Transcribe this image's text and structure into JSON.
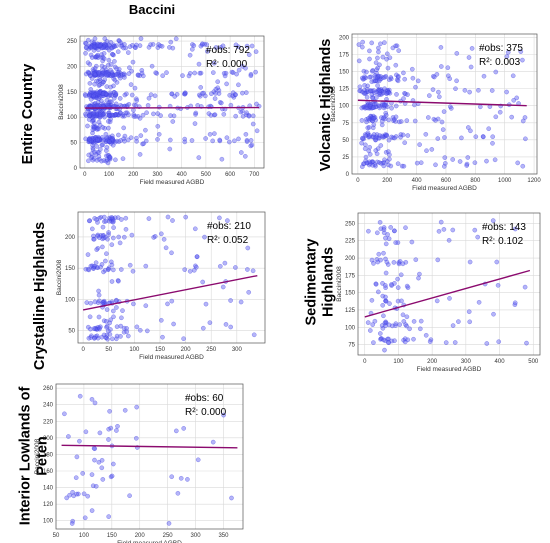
{
  "figure": {
    "title": "Baccini"
  },
  "chart_data": [
    {
      "type": "scatter",
      "region": "Entire Country",
      "xlabel": "Field measured AGBD",
      "ylabel": "Baccini2008",
      "xlim": [
        -20,
        740
      ],
      "ylim": [
        0,
        260
      ],
      "xticks": [
        0,
        100,
        200,
        300,
        400,
        500,
        600,
        700
      ],
      "yticks": [
        0,
        50,
        100,
        150,
        200,
        250
      ],
      "obs_text": "#obs: 792",
      "r2_text": "R²: 0.000",
      "fit": {
        "x": [
          0,
          720
        ],
        "y": [
          118,
          119
        ]
      },
      "points": {
        "count": 792,
        "seed": 11,
        "x_min": 0,
        "x_max": 720,
        "x_mode": 130,
        "y_levels": [
          55,
          105,
          120,
          145,
          185,
          240
        ],
        "y_min": 10,
        "y_max": 255
      }
    },
    {
      "type": "scatter",
      "region": "Volcanic Highlands",
      "xlabel": "Field measured AGBD",
      "ylabel": "Baccini2008",
      "xlim": [
        -40,
        1220
      ],
      "ylim": [
        0,
        205
      ],
      "xticks": [
        0,
        200,
        400,
        600,
        800,
        1000,
        1200
      ],
      "yticks": [
        0,
        25,
        50,
        75,
        100,
        125,
        150,
        175,
        200
      ],
      "obs_text": "#obs: 375",
      "r2_text": "R²: 0.003",
      "fit": {
        "x": [
          0,
          1150
        ],
        "y": [
          108,
          100
        ]
      },
      "points": {
        "count": 375,
        "seed": 23,
        "x_min": 0,
        "x_max": 1150,
        "x_mode": 250,
        "y_levels": [
          15,
          55,
          80,
          100,
          120,
          140
        ],
        "y_min": 10,
        "y_max": 195
      }
    },
    {
      "type": "scatter",
      "region": "Crystalline Highlands",
      "xlabel": "Field measured AGBD",
      "ylabel": "Baccini2008",
      "xlim": [
        -10,
        355
      ],
      "ylim": [
        30,
        240
      ],
      "xticks": [
        0,
        50,
        100,
        150,
        200,
        250,
        300
      ],
      "yticks": [
        50,
        100,
        150,
        200
      ],
      "obs_text": "#obs: 210",
      "r2_text": "R²: 0.052",
      "fit": {
        "x": [
          0,
          340
        ],
        "y": [
          83,
          138
        ]
      },
      "points": {
        "count": 210,
        "seed": 37,
        "x_min": 5,
        "x_max": 335,
        "x_mode": 80,
        "y_levels": [
          40,
          52,
          95,
          150,
          200,
          228
        ],
        "y_min": 35,
        "y_max": 232
      }
    },
    {
      "type": "scatter",
      "region": "Sedimentary Highlands",
      "xlabel": "Field measured AGBD",
      "ylabel": "Baccini2008",
      "xlim": [
        -20,
        520
      ],
      "ylim": [
        60,
        265
      ],
      "xticks": [
        0,
        100,
        200,
        300,
        400,
        500
      ],
      "yticks": [
        75,
        100,
        125,
        150,
        175,
        200,
        225,
        250
      ],
      "obs_text": "#obs: 143",
      "r2_text": "R²: 0.102",
      "fit": {
        "x": [
          0,
          490
        ],
        "y": [
          115,
          182
        ]
      },
      "points": {
        "count": 143,
        "seed": 53,
        "x_min": 5,
        "x_max": 490,
        "x_mode": 150,
        "y_levels": [
          80,
          105,
          135,
          160,
          195,
          240
        ],
        "y_min": 65,
        "y_max": 258
      }
    },
    {
      "type": "scatter",
      "region": "Interior Lowlands of Peten",
      "xlabel": "Field measured AGBD",
      "ylabel": "Baccini2008",
      "xlim": [
        50,
        385
      ],
      "ylim": [
        90,
        265
      ],
      "xticks": [
        50,
        100,
        150,
        200,
        250,
        300,
        350
      ],
      "yticks": [
        100,
        120,
        140,
        160,
        180,
        200,
        220,
        240,
        260
      ],
      "obs_text": "#obs: 60",
      "r2_text": "R²: 0.000",
      "fit": {
        "x": [
          60,
          375
        ],
        "y": [
          191,
          188
        ]
      },
      "points": {
        "count": 60,
        "seed": 71,
        "x_min": 55,
        "x_max": 370,
        "x_mode": 170,
        "y_levels": [
          130,
          150,
          170,
          190,
          210,
          235
        ],
        "y_min": 95,
        "y_max": 255
      }
    }
  ]
}
